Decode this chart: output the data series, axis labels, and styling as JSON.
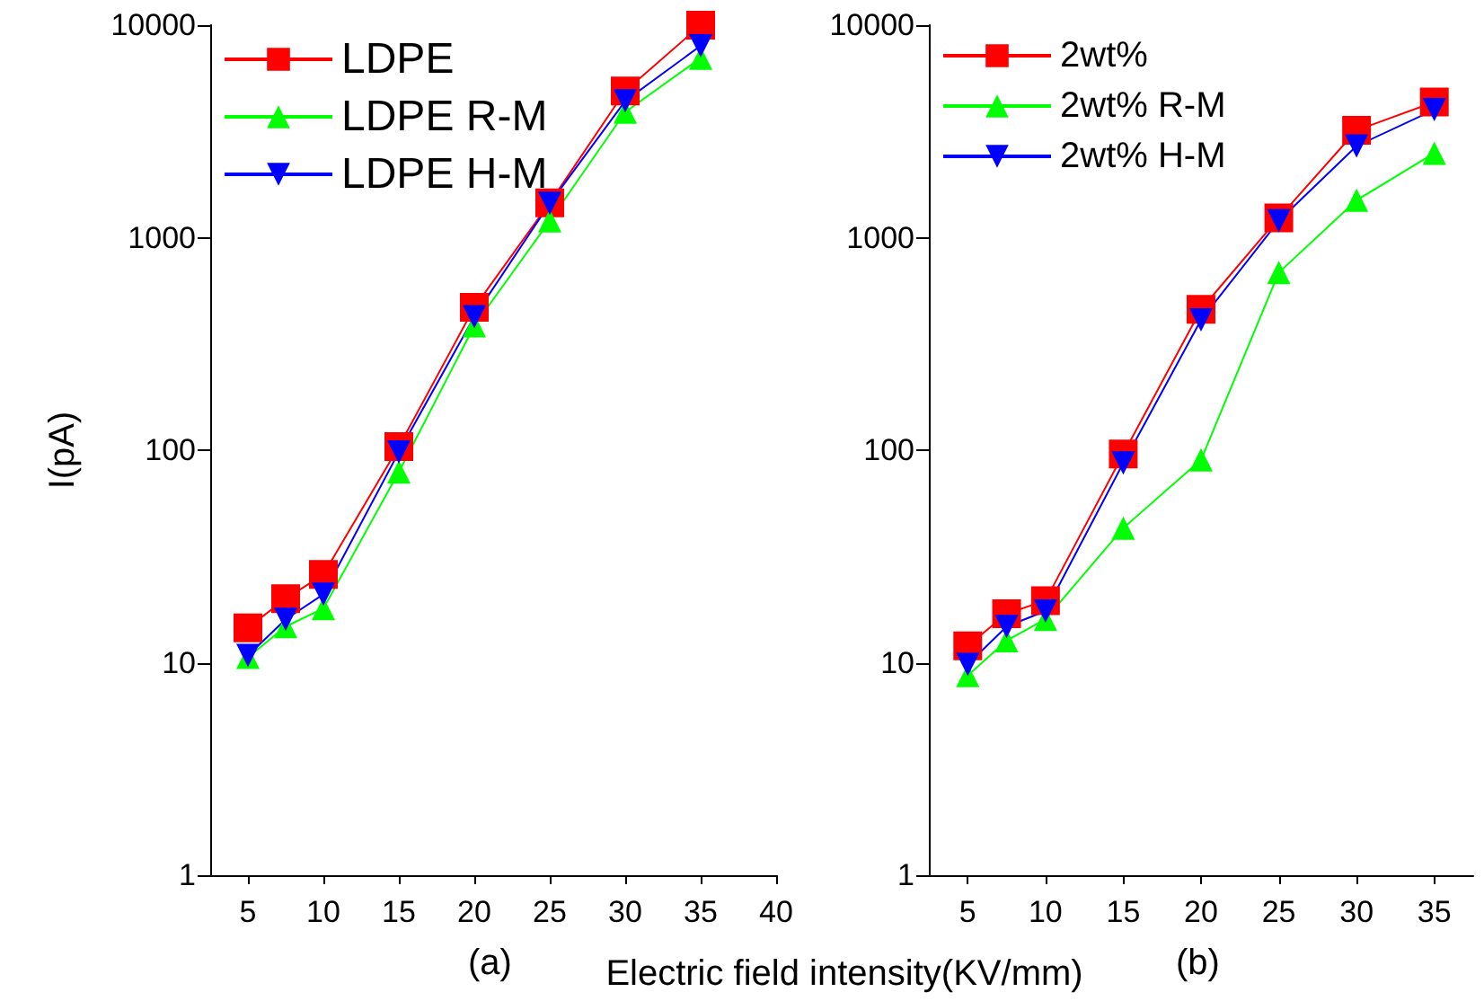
{
  "chart_data": [
    {
      "type": "line",
      "annotations": [
        "(a)"
      ],
      "xlabel": "Electric field intensity(KV/mm)",
      "ylabel": "I(pA)",
      "x": [
        5,
        7.5,
        10,
        15,
        20,
        25,
        30,
        35
      ],
      "log": "y",
      "xlim": [
        2.5,
        40
      ],
      "xticks": [
        5,
        10,
        15,
        20,
        25,
        30,
        35,
        40
      ],
      "ylim": [
        1,
        10000
      ],
      "yticks": [
        1,
        10,
        100,
        1000,
        10000
      ],
      "grid": false,
      "legend": "top left",
      "series": [
        {
          "name": "LDPE",
          "color": "#ff0000",
          "marker": "square",
          "values": [
            14.6,
            20,
            26,
            104,
            470,
            1460,
            4900,
            10000
          ]
        },
        {
          "name": "LDPE R-M",
          "color": "#00ff00",
          "marker": "triangle",
          "values": [
            10.6,
            14.8,
            18,
            79,
            385,
            1200,
            3900,
            7000
          ]
        },
        {
          "name": "LDPE H-M",
          "color": "#0000ff",
          "marker": "triangle-down",
          "values": [
            10.8,
            16,
            21,
            98,
            425,
            1450,
            4400,
            8000
          ]
        }
      ]
    },
    {
      "type": "line",
      "annotations": [
        "(b)"
      ],
      "x": [
        5,
        7.5,
        10,
        15,
        20,
        25,
        30,
        35
      ],
      "log": "y",
      "xlim": [
        2.5,
        37.5
      ],
      "xticks": [
        5,
        10,
        15,
        20,
        25,
        30,
        35
      ],
      "ylim": [
        1,
        10000
      ],
      "yticks": [
        1,
        10,
        100,
        1000,
        10000
      ],
      "grid": false,
      "legend": "top left",
      "series": [
        {
          "name": "2wt%",
          "color": "#ff0000",
          "marker": "square",
          "values": [
            12,
            17,
            19.6,
            96,
            460,
            1240,
            3200,
            4350
          ]
        },
        {
          "name": "2wt% R-M",
          "color": "#00ff00",
          "marker": "triangle",
          "values": [
            8.7,
            12.7,
            16,
            43,
            90,
            685,
            1500,
            2500
          ]
        },
        {
          "name": "2wt% H-M",
          "color": "#0000ff",
          "marker": "triangle-down",
          "values": [
            9.8,
            14.8,
            17.5,
            87,
            410,
            1200,
            2700,
            4000
          ]
        }
      ]
    }
  ]
}
